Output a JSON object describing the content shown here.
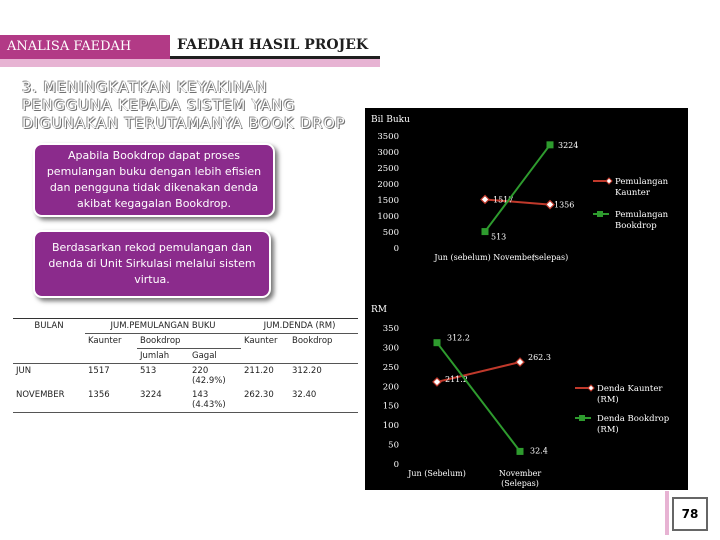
{
  "header": {
    "tab_label": "ANALISA FAEDAH",
    "title": "FAEDAH HASIL PROJEK"
  },
  "heading_lines": [
    "3. MENINGKATKAN KEYAKINAN",
    "PENGGUNA KEPADA SISTEM YANG",
    "DIGUNAKAN TERUTAMANYA BOOK DROP"
  ],
  "bubbles": {
    "first": "Apabila Bookdrop dapat proses pemulangan buku dengan lebih efisien dan pengguna tidak dikenakan denda akibat kegagalan  Bookdrop.",
    "second": "Berdasarkan rekod pemulangan dan denda di Unit Sirkulasi melalui sistem virtua."
  },
  "table": {
    "headers": {
      "bulan": "BULAN",
      "jum_pemulangan": "JUM.PEMULANGAN BUKU",
      "jum_denda": "JUM.DENDA (RM)",
      "kaunter": "Kaunter",
      "bookdrop": "Bookdrop",
      "jumlah": "Jumlah",
      "gagal": "Gagal",
      "denda_kaunter": "Kaunter",
      "denda_bookdrop": "Bookdrop"
    },
    "rows": [
      {
        "bulan": "JUN",
        "kaunter": "1517",
        "bd_jumlah": "513",
        "bd_gagal": "220 (42.9%)",
        "denda_kaunter": "211.20",
        "denda_bookdrop": "312.20"
      },
      {
        "bulan": "NOVEMBER",
        "kaunter": "1356",
        "bd_jumlah": "3224",
        "bd_gagal": "143 (4.43%)",
        "denda_kaunter": "262.30",
        "denda_bookdrop": "32.40"
      }
    ]
  },
  "chart_data": [
    {
      "type": "line",
      "title": "Bil Buku",
      "categories": [
        "Jun (sebelum)",
        "November (selepas)"
      ],
      "ylim": [
        0,
        3500
      ],
      "yticks": [
        0,
        500,
        1000,
        1500,
        2000,
        2500,
        3000,
        3500
      ],
      "series": [
        {
          "name": "Pemulangan Kaunter",
          "values": [
            1517,
            1356
          ],
          "labels": [
            "1517",
            "1356"
          ],
          "color": "#c0392b",
          "marker": "diamond"
        },
        {
          "name": "Pemulangan Bookdrop",
          "values": [
            513,
            3224
          ],
          "labels": [
            "513",
            "3224"
          ],
          "color": "#2e9b2e",
          "marker": "square"
        }
      ],
      "legend": "right"
    },
    {
      "type": "line",
      "title": "RM",
      "categories": [
        "Jun (Sebelum)",
        "November (Selepas)"
      ],
      "ylim": [
        0,
        350
      ],
      "yticks": [
        0,
        50,
        100,
        150,
        200,
        250,
        300,
        350
      ],
      "series": [
        {
          "name": "Denda Kaunter (RM)",
          "values": [
            211.2,
            262.3
          ],
          "labels": [
            "211.2",
            "262.3"
          ],
          "color": "#c0392b",
          "marker": "diamond"
        },
        {
          "name": "Denda Bookdrop (RM)",
          "values": [
            312.2,
            32.4
          ],
          "labels": [
            "312.2",
            "32.4"
          ],
          "color": "#2e9b2e",
          "marker": "square"
        }
      ],
      "legend": "right"
    }
  ],
  "page_number": "78"
}
